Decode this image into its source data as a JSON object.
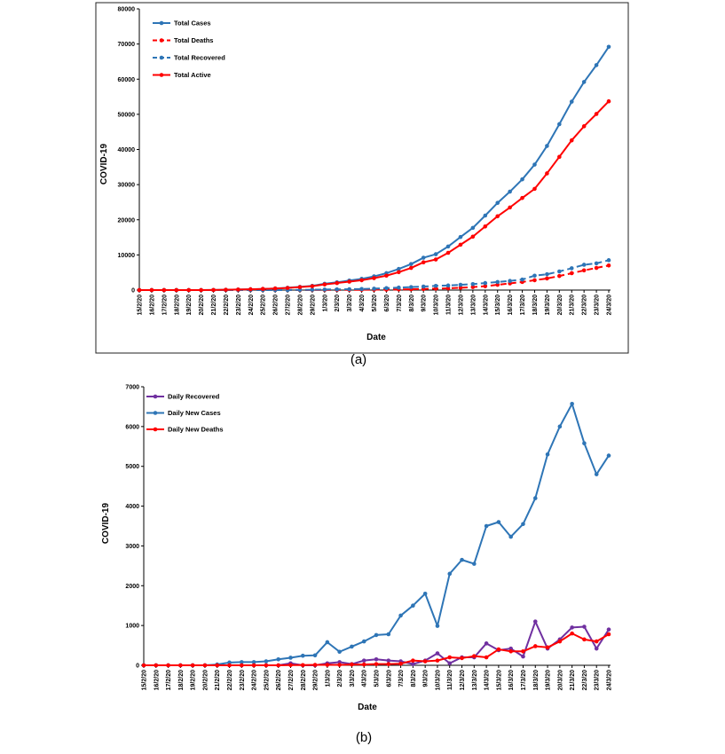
{
  "colors": {
    "blue": "#2E75B6",
    "red": "#FF0000",
    "purple": "#7030A0"
  },
  "chart_data": [
    {
      "type": "line",
      "caption": "(a)",
      "xlabel": "Date",
      "ylabel": "COVID-19",
      "ylim": [
        0,
        80000
      ],
      "yticks": [
        0,
        10000,
        20000,
        30000,
        40000,
        50000,
        60000,
        70000,
        80000
      ],
      "ytick_labels": [
        "0",
        "10000",
        "20000",
        "30000",
        "40000",
        "50000",
        "60000",
        "70000",
        "80000"
      ],
      "legend_position": "top-left",
      "grid": false,
      "categories": [
        "15/2/20",
        "16/2/20",
        "17/2/20",
        "18/2/20",
        "19/2/20",
        "20/2/20",
        "21/2/20",
        "22/2/20",
        "23/2/20",
        "24/2/20",
        "25/2/20",
        "26/2/20",
        "27/2/20",
        "28/2/20",
        "29/2/20",
        "1/3/20",
        "2/3/20",
        "3/3/20",
        "4/3/20",
        "5/3/20",
        "6/3/20",
        "7/3/20",
        "8/3/20",
        "9/3/20",
        "10/3/20",
        "11/3/20",
        "12/3/20",
        "13/3/20",
        "14/3/20",
        "15/3/20",
        "16/3/20",
        "17/3/20",
        "18/3/20",
        "19/3/20",
        "20/3/20",
        "21/3/20",
        "22/3/20",
        "23/3/20",
        "24/3/20"
      ],
      "series": [
        {
          "name": "Total Cases",
          "color": "#2E75B6",
          "dash": false,
          "values": [
            0,
            0,
            0,
            0,
            0,
            0,
            20,
            90,
            150,
            230,
            320,
            450,
            650,
            900,
            1200,
            1800,
            2200,
            2700,
            3200,
            3900,
            4800,
            6000,
            7400,
            9200,
            10200,
            12400,
            15100,
            17700,
            21200,
            24800,
            28000,
            31500,
            35700,
            41000,
            47200,
            53600,
            59200,
            64000,
            69200
          ]
        },
        {
          "name": "Total Deaths",
          "color": "#FF0000",
          "dash": true,
          "values": [
            0,
            0,
            0,
            0,
            0,
            0,
            0,
            0,
            0,
            0,
            0,
            0,
            5,
            10,
            20,
            30,
            40,
            60,
            80,
            110,
            140,
            180,
            230,
            300,
            400,
            500,
            650,
            850,
            1100,
            1500,
            1900,
            2300,
            2800,
            3300,
            4000,
            4800,
            5600,
            6300,
            7000
          ]
        },
        {
          "name": "Total Recovered",
          "color": "#2E75B6",
          "dash": true,
          "values": [
            0,
            0,
            0,
            0,
            0,
            0,
            0,
            0,
            0,
            0,
            0,
            0,
            0,
            50,
            100,
            150,
            200,
            250,
            300,
            400,
            550,
            700,
            850,
            1000,
            1200,
            1300,
            1500,
            1700,
            2000,
            2300,
            2600,
            3000,
            4100,
            4500,
            5300,
            6200,
            7200,
            7600,
            8500
          ]
        },
        {
          "name": "Total Active",
          "color": "#FF0000",
          "dash": false,
          "values": [
            0,
            0,
            0,
            0,
            0,
            0,
            20,
            90,
            150,
            230,
            320,
            450,
            600,
            850,
            1100,
            1600,
            2000,
            2400,
            2800,
            3400,
            4100,
            5100,
            6300,
            7900,
            8700,
            10600,
            12900,
            15200,
            18100,
            21000,
            23500,
            26200,
            28800,
            33200,
            37900,
            42600,
            46600,
            50100,
            53700
          ]
        }
      ]
    },
    {
      "type": "line",
      "caption": "(b)",
      "xlabel": "Date",
      "ylabel": "COVID-19",
      "ylim": [
        0,
        7000
      ],
      "yticks": [
        0,
        1000,
        2000,
        3000,
        4000,
        5000,
        6000,
        7000
      ],
      "ytick_labels": [
        "0",
        "1000",
        "2000",
        "3000",
        "4000",
        "5000",
        "6000",
        "7000"
      ],
      "legend_position": "top-left",
      "grid": false,
      "categories": [
        "15/2/20",
        "16/2/20",
        "17/2/20",
        "18/2/20",
        "19/2/20",
        "20/2/20",
        "21/2/20",
        "22/2/20",
        "23/2/20",
        "24/2/20",
        "25/2/20",
        "26/2/20",
        "27/2/20",
        "28/2/20",
        "29/2/20",
        "1/3/20",
        "2/3/20",
        "3/3/20",
        "4/3/20",
        "5/3/20",
        "6/3/20",
        "7/3/20",
        "8/3/20",
        "9/3/20",
        "10/3/20",
        "11/3/20",
        "12/3/20",
        "13/3/20",
        "14/3/20",
        "15/3/20",
        "16/3/20",
        "17/3/20",
        "18/3/20",
        "19/3/20",
        "20/3/20",
        "21/3/20",
        "22/3/20",
        "23/3/20",
        "24/3/20"
      ],
      "series": [
        {
          "name": "Daily Recovered",
          "color": "#7030A0",
          "dash": false,
          "values": [
            0,
            0,
            0,
            0,
            0,
            0,
            0,
            0,
            0,
            0,
            0,
            0,
            50,
            0,
            0,
            50,
            80,
            30,
            120,
            150,
            120,
            100,
            30,
            120,
            300,
            50,
            200,
            200,
            550,
            380,
            420,
            220,
            1100,
            420,
            650,
            950,
            970,
            420,
            900
          ]
        },
        {
          "name": "Daily New Cases",
          "color": "#2E75B6",
          "dash": false,
          "values": [
            0,
            0,
            0,
            0,
            0,
            0,
            20,
            70,
            80,
            80,
            100,
            150,
            190,
            240,
            250,
            580,
            340,
            470,
            600,
            760,
            780,
            1250,
            1500,
            1800,
            990,
            2300,
            2650,
            2550,
            3500,
            3600,
            3230,
            3550,
            4200,
            5300,
            6000,
            6570,
            5580,
            4800,
            5270
          ]
        },
        {
          "name": "Daily New Deaths",
          "color": "#FF0000",
          "dash": false,
          "values": [
            0,
            0,
            0,
            0,
            0,
            0,
            0,
            0,
            0,
            0,
            0,
            0,
            5,
            5,
            10,
            10,
            10,
            20,
            20,
            30,
            30,
            40,
            120,
            100,
            120,
            200,
            180,
            230,
            200,
            400,
            350,
            350,
            480,
            450,
            600,
            800,
            650,
            600,
            780
          ]
        }
      ]
    }
  ]
}
